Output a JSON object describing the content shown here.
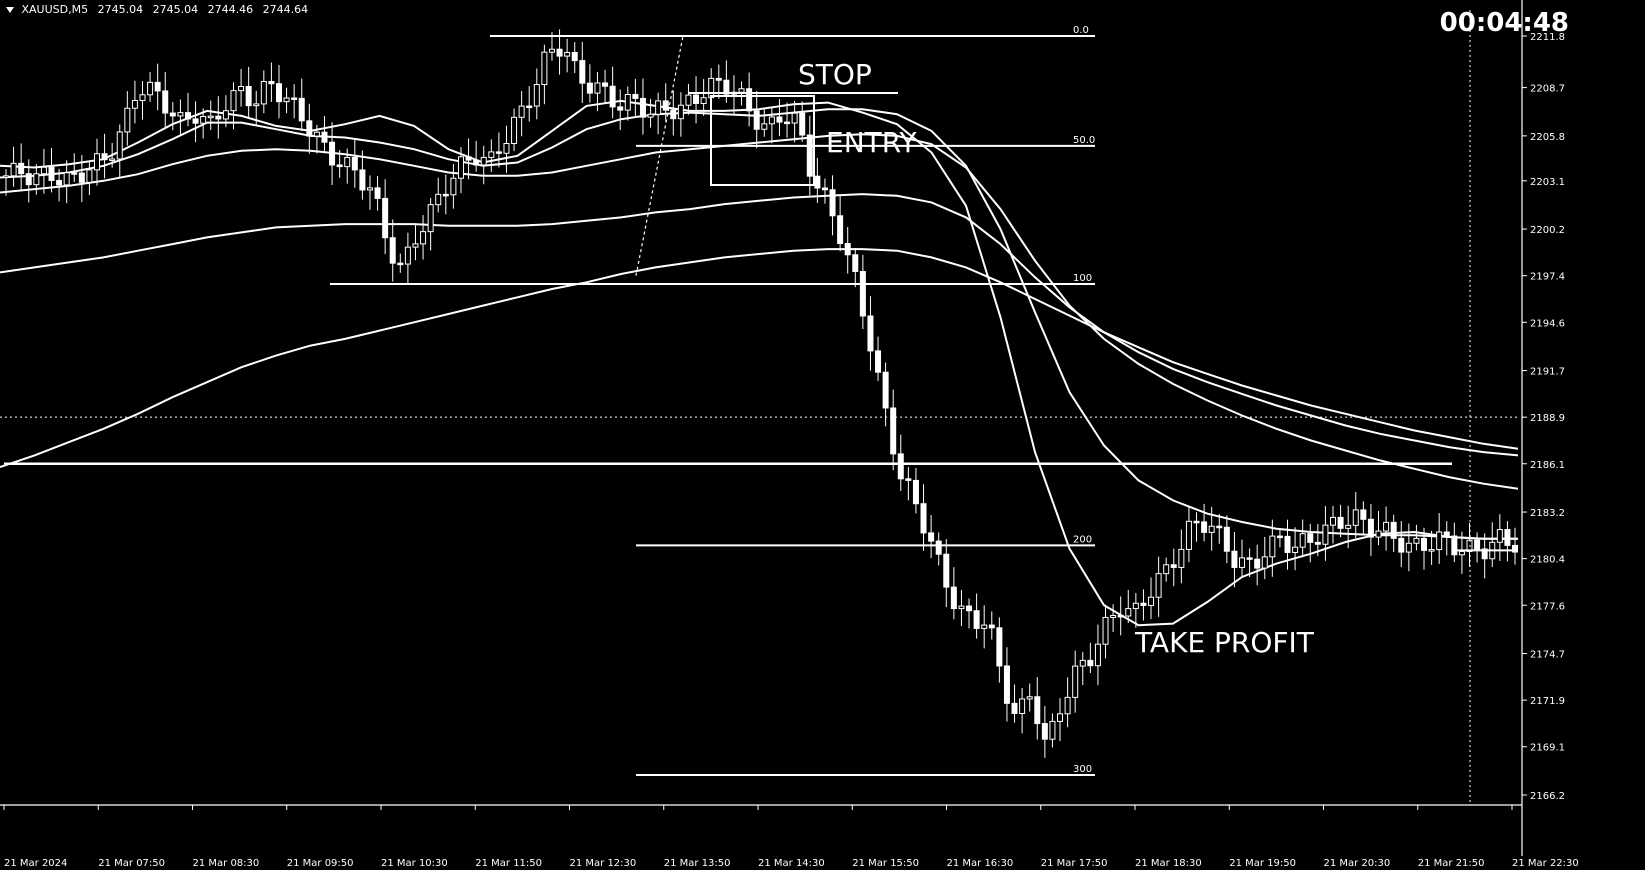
{
  "window": {
    "symbol": "XAUUSD,M5",
    "ohlc": [
      "2745.04",
      "2745.04",
      "2744.46",
      "2744.64"
    ],
    "timer": "00:04:48"
  },
  "colors": {
    "background": "#000000",
    "foreground": "#ffffff"
  },
  "annotations": {
    "stop": "STOP",
    "entry": "ENTRY",
    "take_profit": "TAKE PROFIT"
  },
  "fib_levels": [
    {
      "label": "0.0",
      "price": 2211.8
    },
    {
      "label": "50.0",
      "price": 2205.2
    },
    {
      "label": "100",
      "price": 2196.9
    },
    {
      "label": "200",
      "price": 2181.2
    },
    {
      "label": "300",
      "price": 2167.4
    }
  ],
  "chart_data": {
    "type": "candlestick",
    "price_axis_ticks": [
      "2211.8",
      "2208.7",
      "2205.8",
      "2203.1",
      "2200.2",
      "2197.4",
      "2194.6",
      "2191.7",
      "2188.9",
      "2186.1",
      "2183.2",
      "2180.4",
      "2177.6",
      "2174.7",
      "2171.9",
      "2169.1",
      "2166.2"
    ],
    "time_axis_ticks": [
      "21 Mar 2024",
      "21 Mar 07:50",
      "21 Mar 08:30",
      "21 Mar 09:50",
      "21 Mar 10:30",
      "21 Mar 11:50",
      "21 Mar 12:30",
      "21 Mar 13:50",
      "21 Mar 14:30",
      "21 Mar 15:50",
      "21 Mar 16:30",
      "21 Mar 17:50",
      "21 Mar 18:30",
      "21 Mar 19:50",
      "21 Mar 20:30",
      "21 Mar 21:50",
      "21 Mar 22:30"
    ],
    "ylim": [
      2166.2,
      2211.8
    ],
    "horizontal_lines": [
      2186.1,
      2180.9
    ],
    "dotted_level": 2188.9,
    "close_path": [
      2203.4,
      2203.7,
      2203.2,
      2203.6,
      2203.0,
      2203.5,
      2204.0,
      2204.6,
      2206.2,
      2208.8,
      2208.5,
      2207.6,
      2206.5,
      2207.2,
      2206.4,
      2207.8,
      2208.4,
      2207.9,
      2208.9,
      2208.2,
      2207.1,
      2206.0,
      2204.6,
      2204.2,
      2203.4,
      2202.6,
      2199.4,
      2197.7,
      2199.8,
      2201.2,
      2202.8,
      2203.9,
      2204.7,
      2204.1,
      2205.6,
      2206.9,
      2208.6,
      2210.8,
      2211.3,
      2209.4,
      2208.8,
      2208.3,
      2207.6,
      2207.9,
      2207.1,
      2207.5,
      2207.3,
      2208.1,
      2208.7,
      2209.0,
      2208.3,
      2207.0,
      2206.1,
      2207.2,
      2206.6,
      2203.5,
      2201.8,
      2199.8,
      2197.0,
      2193.4,
      2189.2,
      2185.6,
      2183.8,
      2181.8,
      2179.2,
      2177.4,
      2176.6,
      2176.8,
      2173.0,
      2170.8,
      2172.4,
      2169.0,
      2171.6,
      2173.5,
      2174.5,
      2176.2,
      2177.6,
      2177.0,
      2178.4,
      2179.4,
      2180.8,
      2182.5,
      2182.6,
      2181.5,
      2180.2,
      2179.9,
      2180.9,
      2181.6,
      2181.1,
      2181.5,
      2182.1,
      2182.6,
      2182.9,
      2182.3,
      2182.1,
      2181.5,
      2181.0,
      2181.3,
      2181.6,
      2181.1,
      2180.9,
      2181.0,
      2181.6,
      2181.3
    ],
    "moving_averages": [
      {
        "period": "fast",
        "points": [
          2204.0,
          2203.9,
          2204.1,
          2204.4,
          2205.4,
          2206.5,
          2207.3,
          2207.0,
          2206.4,
          2206.1,
          2206.5,
          2207.0,
          2206.4,
          2205.0,
          2204.2,
          2204.6,
          2206.1,
          2207.6,
          2207.9,
          2207.6,
          2207.3,
          2207.3,
          2207.4,
          2207.7,
          2207.8,
          2207.2,
          2206.5,
          2204.8,
          2201.6,
          2194.9,
          2186.8,
          2181.0,
          2177.6,
          2176.4,
          2176.5,
          2177.8,
          2179.3,
          2180.1,
          2180.7,
          2181.4,
          2181.9,
          2182.0,
          2181.7,
          2181.6,
          2181.6
        ]
      },
      {
        "period": "medium",
        "points": [
          2203.3,
          2203.4,
          2203.6,
          2204.0,
          2204.7,
          2205.6,
          2206.6,
          2206.6,
          2206.2,
          2205.8,
          2205.7,
          2205.4,
          2205.0,
          2204.4,
          2204.0,
          2204.2,
          2205.1,
          2206.2,
          2206.8,
          2207.1,
          2207.2,
          2207.1,
          2207.0,
          2207.2,
          2207.4,
          2207.4,
          2207.1,
          2206.1,
          2204.0,
          2200.2,
          2195.2,
          2190.4,
          2187.2,
          2185.1,
          2183.9,
          2183.1,
          2182.6,
          2182.2,
          2182.0,
          2181.9,
          2181.8,
          2181.8,
          2181.7,
          2181.6,
          2181.6
        ]
      },
      {
        "period": "slow",
        "points": [
          2202.4,
          2202.6,
          2202.8,
          2203.1,
          2203.5,
          2204.1,
          2204.6,
          2204.9,
          2205.0,
          2204.9,
          2204.7,
          2204.4,
          2204.0,
          2203.6,
          2203.4,
          2203.4,
          2203.6,
          2204.0,
          2204.4,
          2204.8,
          2205.0,
          2205.2,
          2205.4,
          2205.6,
          2205.8,
          2205.9,
          2205.8,
          2205.3,
          2203.9,
          2201.4,
          2198.3,
          2195.6,
          2193.6,
          2192.1,
          2190.9,
          2189.9,
          2189.0,
          2188.2,
          2187.5,
          2186.9,
          2186.3,
          2185.8,
          2185.3,
          2184.9,
          2184.6
        ]
      },
      {
        "period": "long",
        "points": [
          2197.6,
          2197.9,
          2198.2,
          2198.5,
          2198.9,
          2199.3,
          2199.7,
          2200.0,
          2200.3,
          2200.4,
          2200.5,
          2200.5,
          2200.5,
          2200.4,
          2200.4,
          2200.4,
          2200.5,
          2200.7,
          2200.9,
          2201.2,
          2201.4,
          2201.7,
          2201.9,
          2202.1,
          2202.2,
          2202.3,
          2202.2,
          2201.8,
          2200.9,
          2199.3,
          2197.3,
          2195.5,
          2194.0,
          2192.8,
          2191.8,
          2191.0,
          2190.3,
          2189.6,
          2189.0,
          2188.4,
          2187.9,
          2187.5,
          2187.1,
          2186.8,
          2186.6
        ]
      },
      {
        "period": "very-long",
        "points": [
          2185.9,
          2186.6,
          2187.4,
          2188.2,
          2189.1,
          2190.1,
          2191.0,
          2191.9,
          2192.6,
          2193.2,
          2193.6,
          2194.1,
          2194.6,
          2195.1,
          2195.6,
          2196.1,
          2196.6,
          2197.0,
          2197.5,
          2197.9,
          2198.2,
          2198.5,
          2198.7,
          2198.9,
          2199.0,
          2199.0,
          2198.9,
          2198.5,
          2197.9,
          2197.0,
          2196.0,
          2195.0,
          2194.0,
          2193.1,
          2192.2,
          2191.5,
          2190.8,
          2190.2,
          2189.6,
          2189.1,
          2188.6,
          2188.1,
          2187.7,
          2187.3,
          2187.0
        ]
      }
    ]
  }
}
